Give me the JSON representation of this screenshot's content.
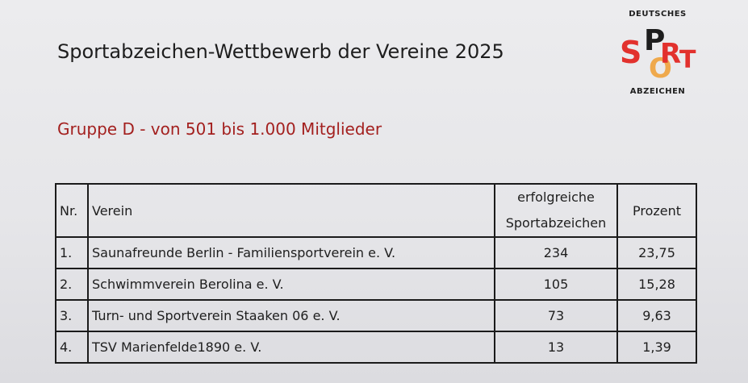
{
  "header": {
    "title": "Sportabzeichen-Wettbewerb der Vereine 2025",
    "subtitle": "Gruppe D - von 501 bis 1.000 Mitglieder"
  },
  "logo": {
    "top_text": "DEUTSCHES",
    "word": "SPORT",
    "bottom_text": "ABZEICHEN",
    "colors": {
      "red": "#e2312d",
      "orange": "#f0a23b",
      "black": "#1e1e1e"
    }
  },
  "table": {
    "headers": {
      "nr": "Nr.",
      "verein": "Verein",
      "count_line1": "erfolgreiche",
      "count_line2": "Sportabzeichen",
      "percent": "Prozent"
    },
    "rows": [
      {
        "nr": "1.",
        "verein": "Saunafreunde Berlin - Familiensportverein e. V.",
        "count": "234",
        "percent": "23,75"
      },
      {
        "nr": "2.",
        "verein": "Schwimmverein Berolina e. V.",
        "count": "105",
        "percent": "15,28"
      },
      {
        "nr": "3.",
        "verein": "Turn- und Sportverein Staaken 06 e. V.",
        "count": "73",
        "percent": "9,63"
      },
      {
        "nr": "4.",
        "verein": "TSV Marienfelde1890 e. V.",
        "count": "13",
        "percent": "1,39"
      }
    ]
  }
}
